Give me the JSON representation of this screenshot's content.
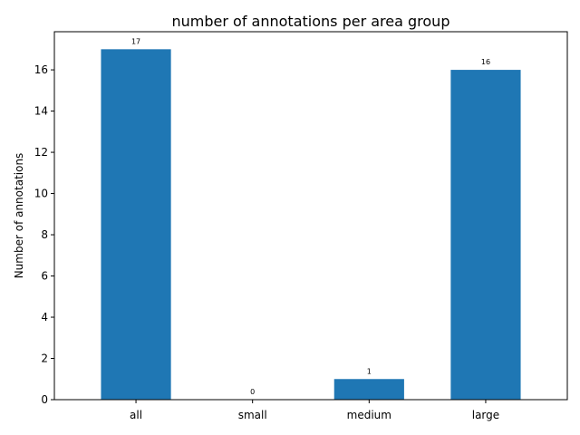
{
  "chart_data": {
    "type": "bar",
    "title": "number of annotations per area group",
    "xlabel": "",
    "ylabel": "Number of annotations",
    "categories": [
      "all",
      "small",
      "medium",
      "large"
    ],
    "values": [
      17,
      0,
      1,
      16
    ],
    "data_labels": [
      "17",
      "0",
      "1",
      "16"
    ],
    "yticks": [
      0,
      2,
      4,
      6,
      8,
      10,
      12,
      14,
      16
    ],
    "ylim": [
      0,
      17.85
    ],
    "grid": false,
    "bar_color": "#1f77b4"
  }
}
